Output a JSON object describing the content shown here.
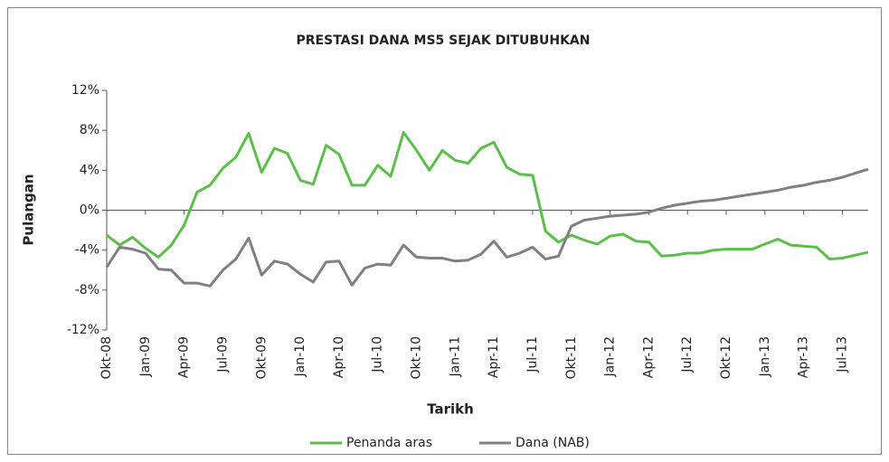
{
  "chart_data": {
    "type": "line",
    "title": "PRESTASI DANA MS5 SEJAK DITUBUHKAN",
    "x_label": "Tarikh",
    "y_label": "Pulangan",
    "categories": [
      "Okt-08",
      null,
      null,
      "Jan-09",
      null,
      null,
      "Apr-09",
      null,
      null,
      "Jul-09",
      null,
      null,
      "Okt-09",
      null,
      null,
      "Jan-10",
      null,
      null,
      "Apr-10",
      null,
      null,
      "Jul-10",
      null,
      null,
      "Okt-10",
      null,
      null,
      "Jan-11",
      null,
      null,
      "Apr-11",
      null,
      null,
      "Jul-11",
      null,
      null,
      "Okt-11",
      null,
      null,
      "Jan-12",
      null,
      null,
      "Apr-12",
      null,
      null,
      "Jul-12",
      null,
      null,
      "Okt-12",
      null,
      null,
      "Jan-13",
      null,
      null,
      "Apr-13",
      null,
      null,
      "Jul-13",
      null,
      null
    ],
    "series": [
      {
        "name": "Penanda aras",
        "color": "#5bbf4a",
        "values": [
          -2.5,
          -3.5,
          -2.7,
          -3.8,
          -4.7,
          -3.5,
          -1.5,
          1.8,
          2.5,
          4.2,
          5.3,
          7.7,
          3.8,
          6.2,
          5.7,
          3.0,
          2.6,
          6.5,
          5.6,
          2.5,
          2.5,
          4.5,
          3.4,
          7.8,
          6.0,
          4.0,
          6.0,
          5.0,
          4.7,
          6.2,
          6.8,
          4.3,
          3.6,
          3.5,
          -2.1,
          -3.2,
          -2.5,
          -3.0,
          -3.4,
          -2.6,
          -2.4,
          -3.1,
          -3.2,
          -4.6,
          -4.5,
          -4.3,
          -4.3,
          -4.0,
          -3.9,
          -3.9,
          -3.9,
          -3.4,
          -2.9,
          -3.5,
          -3.6,
          -3.7,
          -4.9,
          -4.8,
          -4.5,
          -4.2
        ]
      },
      {
        "name": "Dana (NAB)",
        "color": "#808080",
        "values": [
          -5.7,
          -3.7,
          -3.9,
          -4.3,
          -5.9,
          -6.0,
          -7.3,
          -7.3,
          -7.6,
          -6.0,
          -4.9,
          -2.8,
          -6.5,
          -5.1,
          -5.4,
          -6.4,
          -7.2,
          -5.2,
          -5.1,
          -7.5,
          -5.8,
          -5.4,
          -5.5,
          -3.5,
          -4.7,
          -4.8,
          -4.8,
          -5.1,
          -5.0,
          -4.4,
          -3.1,
          -4.7,
          -4.3,
          -3.7,
          -4.9,
          -4.6,
          -1.6,
          -1.0,
          -0.8,
          -0.6,
          -0.5,
          -0.4,
          -0.2,
          0.2,
          0.5,
          0.7,
          0.9,
          1.0,
          1.2,
          1.4,
          1.6,
          1.8,
          2.0,
          2.3,
          2.5,
          2.8,
          3.0,
          3.3,
          3.7,
          4.1
        ]
      }
    ],
    "ylim": [
      -12,
      12
    ],
    "yticks": [
      {
        "value": -12,
        "label": "-12%"
      },
      {
        "value": -8,
        "label": "-8%"
      },
      {
        "value": -4,
        "label": "-4%"
      },
      {
        "value": 0,
        "label": "0%"
      },
      {
        "value": 4,
        "label": "4%"
      },
      {
        "value": 8,
        "label": "8%"
      },
      {
        "value": 12,
        "label": "12%"
      }
    ],
    "legend": "bottom"
  }
}
